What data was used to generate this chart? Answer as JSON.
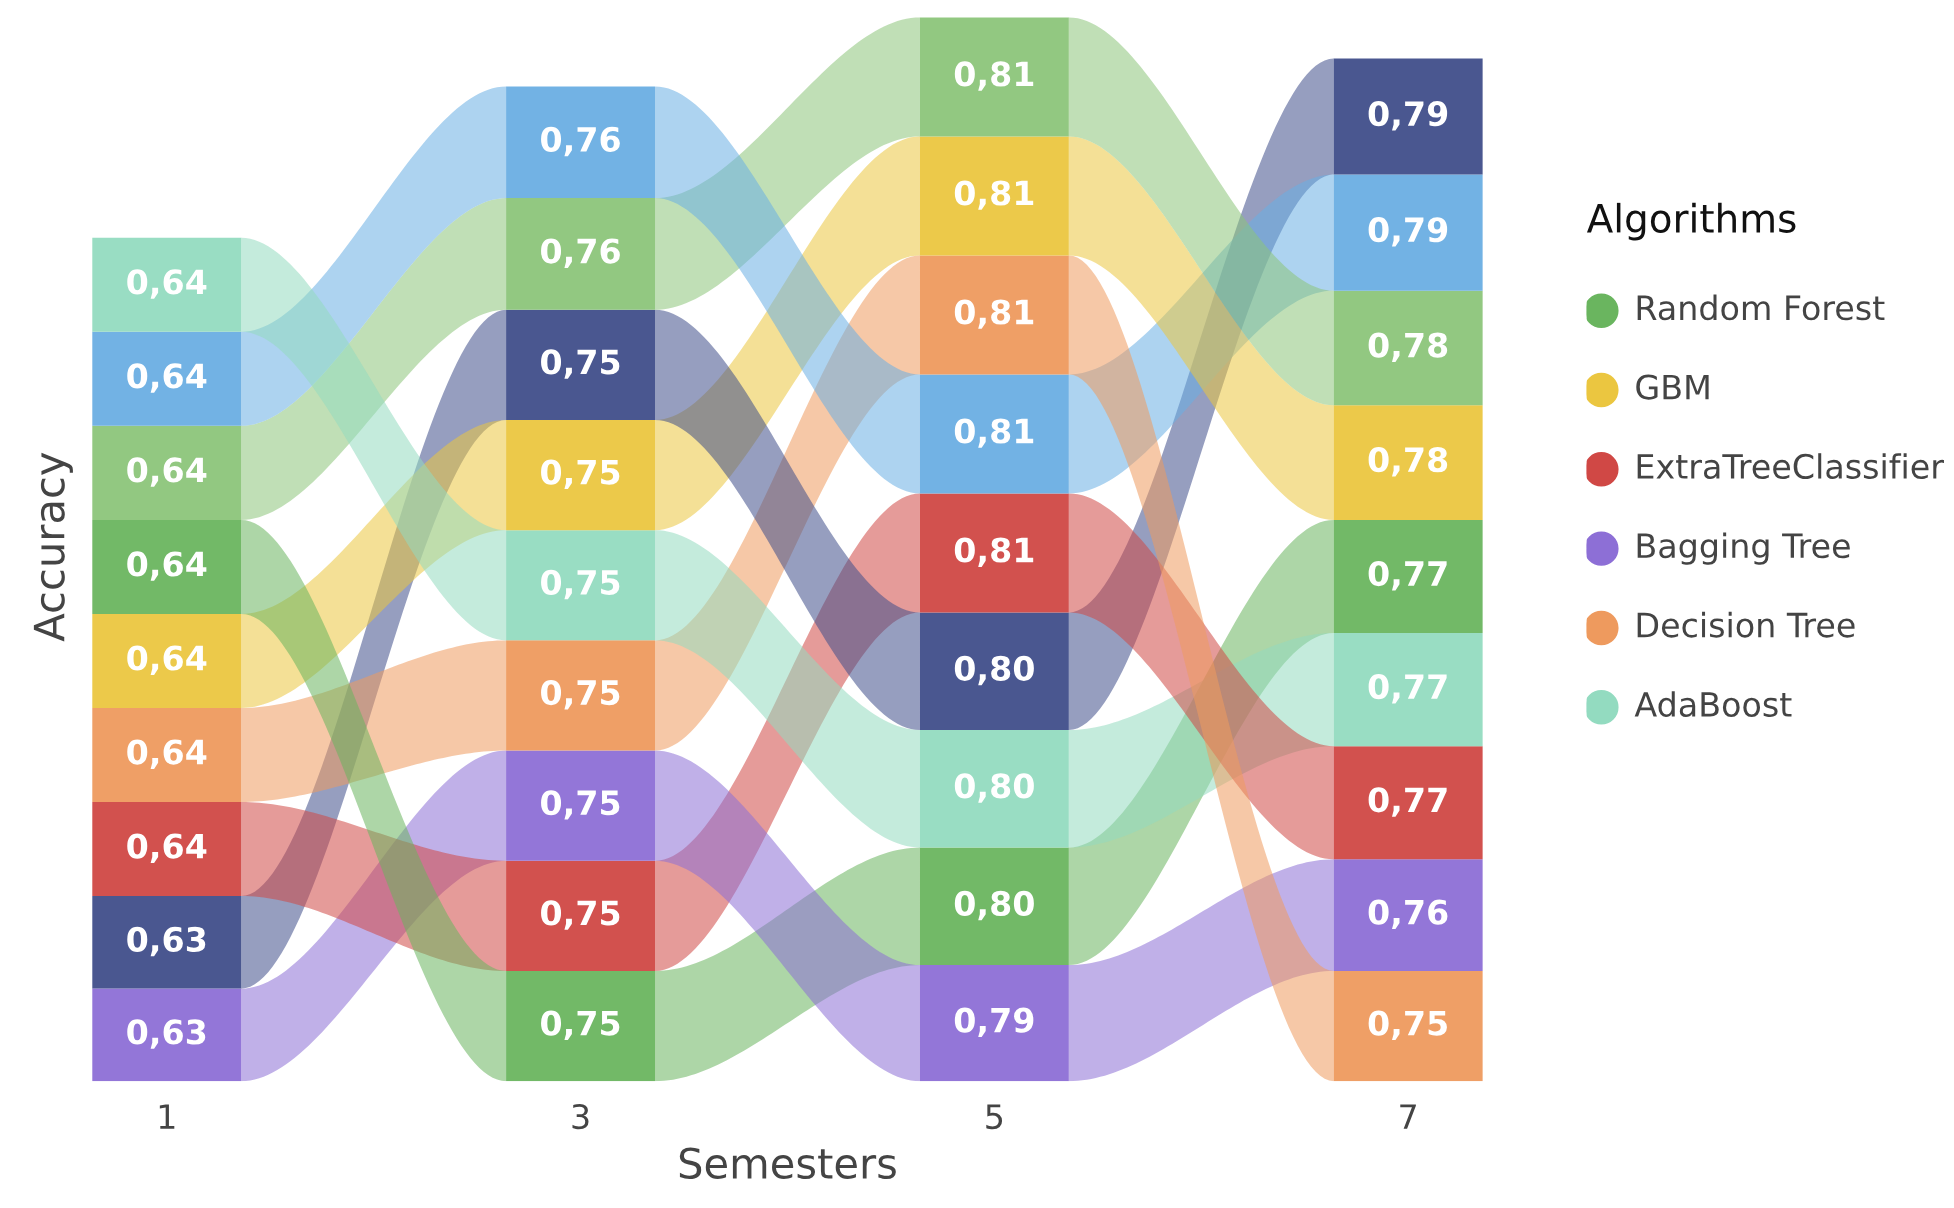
{
  "chart_data": [
    {
      "type": "bar",
      "stacked": true,
      "xlabel": "Semesters",
      "ylabel": "Accuracy",
      "categories": [
        "1",
        "3",
        "5",
        "7"
      ],
      "series": [
        {
          "colors": [
            "#8d6fd6",
            "#6ab55f",
            "#8d6fd6",
            "#ee9a5e"
          ],
          "values": [
            0.63,
            0.75,
            0.79,
            0.75
          ],
          "value_labels": [
            "0,63",
            "0,75",
            "0,79",
            "0,75"
          ]
        },
        {
          "colors": [
            "#404e8a",
            "#d04845",
            "#6ab55f",
            "#8d6fd6"
          ],
          "values": [
            0.63,
            0.75,
            0.8,
            0.76
          ],
          "value_labels": [
            "0,63",
            "0,75",
            "0,80",
            "0,76"
          ]
        },
        {
          "colors": [
            "#d04845",
            "#8d6fd6",
            "#93dbc0",
            "#d04845"
          ],
          "values": [
            0.64,
            0.75,
            0.8,
            0.77
          ],
          "value_labels": [
            "0,64",
            "0,75",
            "0,80",
            "0,77"
          ]
        },
        {
          "colors": [
            "#ee9a5e",
            "#ee9a5e",
            "#404e8a",
            "#93dbc0"
          ],
          "values": [
            0.64,
            0.75,
            0.8,
            0.77
          ],
          "value_labels": [
            "0,64",
            "0,75",
            "0,80",
            "0,77"
          ]
        },
        {
          "colors": [
            "#ebc640",
            "#93dbc0",
            "#d04845",
            "#6ab55f"
          ],
          "values": [
            0.64,
            0.75,
            0.81,
            0.77
          ],
          "value_labels": [
            "0,64",
            "0,75",
            "0,81",
            "0,77"
          ]
        },
        {
          "colors": [
            "#6ab55f",
            "#ebc640",
            "#6aaee3",
            "#ebc640"
          ],
          "values": [
            0.64,
            0.75,
            0.81,
            0.78
          ],
          "value_labels": [
            "0,64",
            "0,75",
            "0,81",
            "0,78"
          ]
        },
        {
          "colors": [
            "#8cc57a",
            "#404e8a",
            "#ee9a5e",
            "#8cc57a"
          ],
          "values": [
            0.64,
            0.75,
            0.81,
            0.78
          ],
          "value_labels": [
            "0,64",
            "0,75",
            "0,81",
            "0,78"
          ]
        },
        {
          "colors": [
            "#6aaee3",
            "#8cc57a",
            "#ebc640",
            "#6aaee3"
          ],
          "values": [
            0.64,
            0.76,
            0.81,
            0.79
          ],
          "value_labels": [
            "0,64",
            "0,76",
            "0,81",
            "0,79"
          ]
        },
        {
          "colors": [
            "#93dbc0",
            "#6aaee3",
            "#8cc57a",
            "#404e8a"
          ],
          "values": [
            0.64,
            0.76,
            0.81,
            0.79
          ],
          "value_labels": [
            "0,64",
            "0,76",
            "0,81",
            "0,79"
          ]
        }
      ]
    },
    {
      "type": "other",
      "title": "Algorithms",
      "categories": [
        "Random Forest",
        "GBM",
        "ExtraTreeClassifier",
        "Bagging Tree",
        "Decision Tree",
        "AdaBoost"
      ],
      "colors": [
        "#6ab55f",
        "#ebc640",
        "#d04845",
        "#8d6fd6",
        "#ee9a5e",
        "#93dbc0"
      ]
    }
  ]
}
